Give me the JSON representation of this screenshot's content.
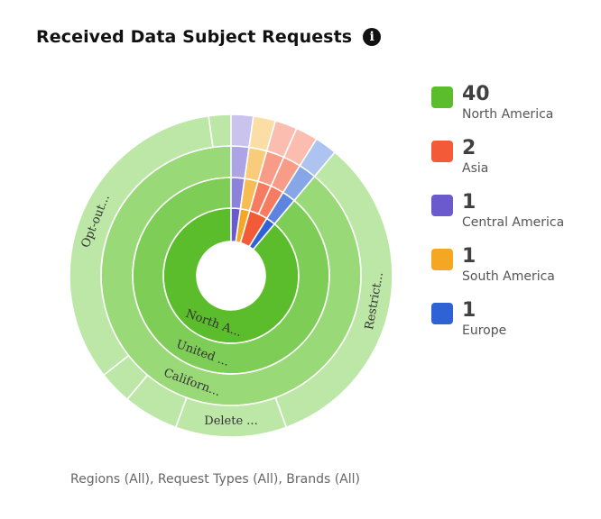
{
  "title": "Received Data Subject Requests",
  "info_icon": "info-icon",
  "footer": "Regions (All), Request Types (All), Brands (All)",
  "chart_data": {
    "type": "sunburst",
    "title": "Received Data Subject Requests",
    "rings": [
      {
        "level": "Region",
        "segments": [
          {
            "label": "North A...",
            "value": 40,
            "color": "#5bbd2b"
          },
          {
            "label": "",
            "value": 1,
            "color": "#6a5acd"
          },
          {
            "label": "",
            "value": 1,
            "color": "#f5a623"
          },
          {
            "label": "",
            "value": 2,
            "color": "#f25a38"
          },
          {
            "label": "",
            "value": 1,
            "color": "#2f62d4"
          }
        ]
      },
      {
        "level": "Country",
        "segments": [
          {
            "label": "United ...",
            "value": 40,
            "color": "#7dcd57"
          },
          {
            "label": "",
            "value": 1,
            "color": "#8d82db"
          },
          {
            "label": "",
            "value": 1,
            "color": "#f7bc54"
          },
          {
            "label": "",
            "value": 1,
            "color": "#f57c61"
          },
          {
            "label": "",
            "value": 1,
            "color": "#f57c61"
          },
          {
            "label": "",
            "value": 1,
            "color": "#5d85e0"
          }
        ]
      },
      {
        "level": "State",
        "segments": [
          {
            "label": "Californ...",
            "value": 40,
            "color": "#9ad978"
          },
          {
            "label": "",
            "value": 1,
            "color": "#aca4e5"
          },
          {
            "label": "",
            "value": 1,
            "color": "#f9cc7c"
          },
          {
            "label": "",
            "value": 1,
            "color": "#f89c88"
          },
          {
            "label": "",
            "value": 1,
            "color": "#f89c88"
          },
          {
            "label": "",
            "value": 1,
            "color": "#87a6e8"
          }
        ]
      },
      {
        "level": "Request Type",
        "segments": [
          {
            "label": "Restrict...",
            "value": 15,
            "color": "#bce7a6"
          },
          {
            "label": "Delete ...",
            "value": 5,
            "color": "#bce7a6"
          },
          {
            "label": "",
            "value": 2.5,
            "color": "#bce7a6"
          },
          {
            "label": "",
            "value": 1.5,
            "color": "#bce7a6"
          },
          {
            "label": "Opt-out...",
            "value": 15,
            "color": "#bce7a6"
          },
          {
            "label": "",
            "value": 1,
            "color": "#bce7a6"
          },
          {
            "label": "",
            "value": 1,
            "color": "#c9c3ee"
          },
          {
            "label": "",
            "value": 1,
            "color": "#fbdda6"
          },
          {
            "label": "",
            "value": 1,
            "color": "#fbbdb0"
          },
          {
            "label": "",
            "value": 1,
            "color": "#fbbdb0"
          },
          {
            "label": "",
            "value": 1,
            "color": "#adc3f0"
          }
        ]
      }
    ]
  },
  "legend": [
    {
      "value": "40",
      "label": "North America",
      "color": "#5bbd2b"
    },
    {
      "value": "2",
      "label": "Asia",
      "color": "#f25a38"
    },
    {
      "value": "1",
      "label": "Central America",
      "color": "#6a5acd"
    },
    {
      "value": "1",
      "label": "South America",
      "color": "#f5a623"
    },
    {
      "value": "1",
      "label": "Europe",
      "color": "#2f62d4"
    }
  ]
}
